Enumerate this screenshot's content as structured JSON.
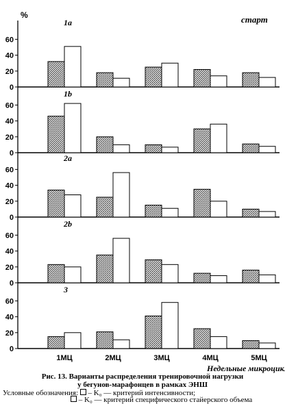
{
  "chart_data": {
    "type": "bar",
    "y_unit": "%",
    "corner_label": "старт",
    "x_label": "Недельные микроциклы",
    "categories": [
      "1МЦ",
      "2МЦ",
      "3МЦ",
      "4МЦ",
      "5МЦ"
    ],
    "ylim": [
      0,
      60
    ],
    "yticks": [
      "60",
      "40",
      "20",
      "0"
    ],
    "series_styles": [
      "dotted",
      "white"
    ],
    "panels": [
      {
        "label": "1a",
        "series": [
          {
            "values": [
              32,
              18,
              25,
              22,
              18
            ]
          },
          {
            "values": [
              51,
              11,
              30,
              14,
              12
            ]
          }
        ]
      },
      {
        "label": "1b",
        "series": [
          {
            "values": [
              46,
              20,
              10,
              30,
              11
            ]
          },
          {
            "values": [
              62,
              10,
              7,
              36,
              8
            ]
          }
        ]
      },
      {
        "label": "2a",
        "series": [
          {
            "values": [
              34,
              25,
              15,
              35,
              10
            ]
          },
          {
            "values": [
              28,
              56,
              11,
              20,
              7
            ]
          }
        ]
      },
      {
        "label": "2b",
        "series": [
          {
            "values": [
              23,
              35,
              29,
              12,
              16
            ]
          },
          {
            "values": [
              20,
              56,
              23,
              9,
              10
            ]
          }
        ]
      },
      {
        "label": "3",
        "series": [
          {
            "values": [
              15,
              21,
              41,
              25,
              10
            ]
          },
          {
            "values": [
              20,
              11,
              58,
              15,
              7
            ]
          }
        ]
      }
    ]
  },
  "caption": {
    "line1": "Рис. 13. Варианты распределения тренировочной нагрузки",
    "line2": "у бегунов-марафонцев в рамках ЭНШ"
  },
  "legend": {
    "prefix": "Условные обозначения:",
    "intensity": "– K₀ — критерий интенсивности;",
    "volume": "– K₀ — критерий специфического стайерского объема"
  }
}
